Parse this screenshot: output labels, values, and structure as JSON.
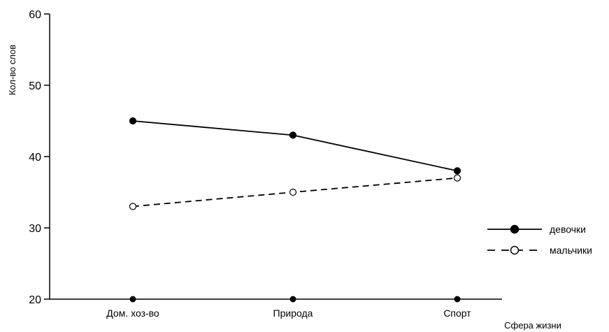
{
  "chart_data": {
    "type": "line",
    "categories": [
      "Дом. хоз-во",
      "Природа",
      "Спорт"
    ],
    "series": [
      {
        "name": "девочки",
        "values": [
          45,
          43,
          38
        ],
        "line_style": "solid",
        "marker": "filled-circle",
        "color": "#000000"
      },
      {
        "name": "мальчики",
        "values": [
          33,
          35,
          37
        ],
        "line_style": "dashed",
        "marker": "open-circle",
        "color": "#000000"
      }
    ],
    "ylabel": "Кол-во слов",
    "xlabel": "Сфера жизни",
    "ylim": [
      20,
      60
    ],
    "yticks": [
      20,
      30,
      40,
      50,
      60
    ],
    "grid": false,
    "legend_position": "right",
    "baseline_markers": [
      20,
      20,
      20
    ]
  }
}
